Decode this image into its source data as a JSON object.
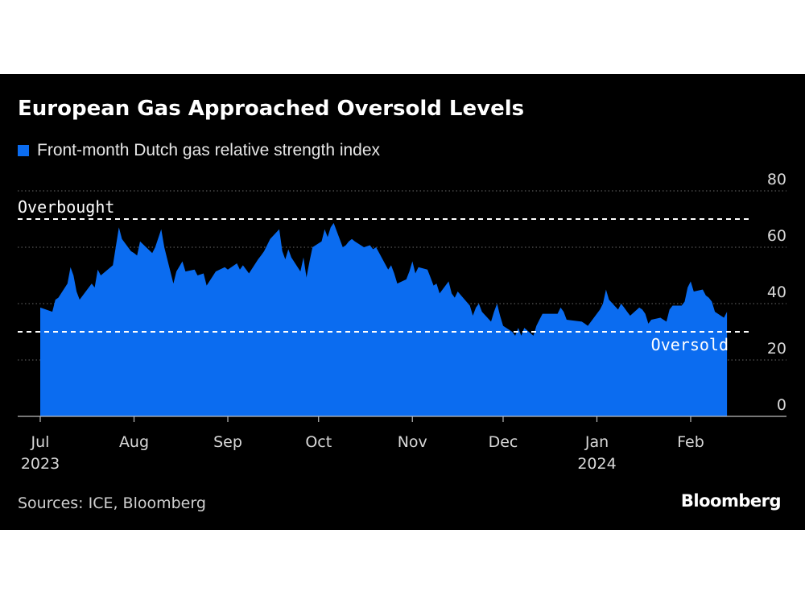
{
  "title": "European Gas Approached Oversold Levels",
  "source": "Sources: ICE, Bloomberg",
  "brand": "Bloomberg",
  "colors": {
    "background": "#000000",
    "area": "#0b6cf0",
    "text": "#ffffff"
  },
  "chart_data": {
    "type": "area",
    "title": "European Gas Approached Oversold Levels",
    "legend": [
      {
        "name": "Front-month Dutch gas relative strength index",
        "color": "#0b6cf0"
      }
    ],
    "legend_placement": "top-left",
    "ylim": [
      0,
      80
    ],
    "y_ticks": [
      0,
      20,
      40,
      60,
      80
    ],
    "y_axis_side": "right",
    "grid": "horizontal dotted",
    "x_ticks": [
      {
        "date": "2023-07-01",
        "label": "Jul",
        "year": "2023"
      },
      {
        "date": "2023-08-01",
        "label": "Aug",
        "year": ""
      },
      {
        "date": "2023-09-01",
        "label": "Sep",
        "year": ""
      },
      {
        "date": "2023-10-01",
        "label": "Oct",
        "year": ""
      },
      {
        "date": "2023-11-01",
        "label": "Nov",
        "year": ""
      },
      {
        "date": "2023-12-01",
        "label": "Dec",
        "year": ""
      },
      {
        "date": "2024-01-01",
        "label": "Jan",
        "year": "2024"
      },
      {
        "date": "2024-02-01",
        "label": "Feb",
        "year": ""
      }
    ],
    "reference_lines": [
      {
        "label": "Overbought",
        "value": 70
      },
      {
        "label": "Oversold",
        "value": 30
      }
    ],
    "series": [
      {
        "name": "Front-month Dutch gas relative strength index",
        "points": [
          [
            "2023-07-01",
            38.6
          ],
          [
            "2023-07-05",
            37.1
          ],
          [
            "2023-07-06",
            41.4
          ],
          [
            "2023-07-07",
            42.1
          ],
          [
            "2023-07-10",
            47.1
          ],
          [
            "2023-07-11",
            52.9
          ],
          [
            "2023-07-12",
            50.0
          ],
          [
            "2023-07-13",
            44.3
          ],
          [
            "2023-07-14",
            41.4
          ],
          [
            "2023-07-18",
            47.1
          ],
          [
            "2023-07-19",
            45.7
          ],
          [
            "2023-07-20",
            52.1
          ],
          [
            "2023-07-21",
            50.0
          ],
          [
            "2023-07-25",
            53.6
          ],
          [
            "2023-07-27",
            67.1
          ],
          [
            "2023-07-28",
            62.9
          ],
          [
            "2023-07-31",
            58.6
          ],
          [
            "2023-08-01",
            57.9
          ],
          [
            "2023-08-02",
            57.1
          ],
          [
            "2023-08-03",
            62.1
          ],
          [
            "2023-08-07",
            57.9
          ],
          [
            "2023-08-08",
            60.0
          ],
          [
            "2023-08-10",
            66.4
          ],
          [
            "2023-08-11",
            60.0
          ],
          [
            "2023-08-14",
            47.1
          ],
          [
            "2023-08-15",
            51.4
          ],
          [
            "2023-08-17",
            55.0
          ],
          [
            "2023-08-18",
            51.4
          ],
          [
            "2023-08-21",
            52.1
          ],
          [
            "2023-08-22",
            50.0
          ],
          [
            "2023-08-24",
            50.7
          ],
          [
            "2023-08-25",
            46.4
          ],
          [
            "2023-08-28",
            51.4
          ],
          [
            "2023-08-31",
            52.9
          ],
          [
            "2023-09-01",
            52.1
          ],
          [
            "2023-09-04",
            54.3
          ],
          [
            "2023-09-05",
            52.1
          ],
          [
            "2023-09-06",
            53.6
          ],
          [
            "2023-09-08",
            50.7
          ],
          [
            "2023-09-11",
            55.7
          ],
          [
            "2023-09-12",
            57.1
          ],
          [
            "2023-09-13",
            58.6
          ],
          [
            "2023-09-15",
            62.9
          ],
          [
            "2023-09-18",
            66.4
          ],
          [
            "2023-09-19",
            58.6
          ],
          [
            "2023-09-20",
            55.7
          ],
          [
            "2023-09-21",
            59.3
          ],
          [
            "2023-09-22",
            56.4
          ],
          [
            "2023-09-25",
            51.4
          ],
          [
            "2023-09-26",
            56.4
          ],
          [
            "2023-09-27",
            49.3
          ],
          [
            "2023-09-28",
            55.0
          ],
          [
            "2023-09-29",
            60.0
          ],
          [
            "2023-10-02",
            62.1
          ],
          [
            "2023-10-03",
            66.4
          ],
          [
            "2023-10-04",
            63.6
          ],
          [
            "2023-10-05",
            67.1
          ],
          [
            "2023-10-06",
            68.6
          ],
          [
            "2023-10-09",
            60.0
          ],
          [
            "2023-10-10",
            60.7
          ],
          [
            "2023-10-11",
            62.1
          ],
          [
            "2023-10-12",
            62.9
          ],
          [
            "2023-10-13",
            62.1
          ],
          [
            "2023-10-16",
            60.0
          ],
          [
            "2023-10-18",
            60.7
          ],
          [
            "2023-10-19",
            59.3
          ],
          [
            "2023-10-20",
            60.0
          ],
          [
            "2023-10-24",
            52.1
          ],
          [
            "2023-10-25",
            53.6
          ],
          [
            "2023-10-26",
            50.7
          ],
          [
            "2023-10-27",
            47.1
          ],
          [
            "2023-10-30",
            48.6
          ],
          [
            "2023-10-31",
            51.4
          ],
          [
            "2023-11-01",
            55.0
          ],
          [
            "2023-11-02",
            50.7
          ],
          [
            "2023-11-03",
            52.9
          ],
          [
            "2023-11-06",
            52.1
          ],
          [
            "2023-11-07",
            49.3
          ],
          [
            "2023-11-08",
            46.4
          ],
          [
            "2023-11-09",
            47.1
          ],
          [
            "2023-11-10",
            43.6
          ],
          [
            "2023-11-13",
            47.9
          ],
          [
            "2023-11-14",
            43.6
          ],
          [
            "2023-11-15",
            42.1
          ],
          [
            "2023-11-16",
            44.3
          ],
          [
            "2023-11-20",
            39.3
          ],
          [
            "2023-11-21",
            35.7
          ],
          [
            "2023-11-22",
            38.6
          ],
          [
            "2023-11-23",
            40.0
          ],
          [
            "2023-11-24",
            37.1
          ],
          [
            "2023-11-27",
            33.6
          ],
          [
            "2023-11-28",
            37.1
          ],
          [
            "2023-11-29",
            40.0
          ],
          [
            "2023-11-30",
            35.7
          ],
          [
            "2023-12-01",
            32.1
          ],
          [
            "2023-12-04",
            30.0
          ],
          [
            "2023-12-05",
            28.6
          ],
          [
            "2023-12-06",
            31.4
          ],
          [
            "2023-12-07",
            28.6
          ],
          [
            "2023-12-08",
            31.4
          ],
          [
            "2023-12-11",
            28.6
          ],
          [
            "2023-12-12",
            32.1
          ],
          [
            "2023-12-13",
            34.3
          ],
          [
            "2023-12-14",
            36.4
          ],
          [
            "2023-12-15",
            36.4
          ],
          [
            "2023-12-18",
            36.4
          ],
          [
            "2023-12-19",
            36.4
          ],
          [
            "2023-12-20",
            38.6
          ],
          [
            "2023-12-21",
            37.1
          ],
          [
            "2023-12-22",
            34.3
          ],
          [
            "2023-12-27",
            33.6
          ],
          [
            "2023-12-28",
            32.9
          ],
          [
            "2023-12-29",
            32.1
          ],
          [
            "2024-01-02",
            37.9
          ],
          [
            "2024-01-03",
            40.0
          ],
          [
            "2024-01-04",
            45.0
          ],
          [
            "2024-01-05",
            41.4
          ],
          [
            "2024-01-08",
            37.9
          ],
          [
            "2024-01-09",
            40.0
          ],
          [
            "2024-01-10",
            38.6
          ],
          [
            "2024-01-11",
            37.1
          ],
          [
            "2024-01-12",
            35.7
          ],
          [
            "2024-01-15",
            38.6
          ],
          [
            "2024-01-16",
            37.9
          ],
          [
            "2024-01-17",
            36.4
          ],
          [
            "2024-01-18",
            32.9
          ],
          [
            "2024-01-19",
            34.3
          ],
          [
            "2024-01-22",
            35.0
          ],
          [
            "2024-01-23",
            34.3
          ],
          [
            "2024-01-24",
            33.6
          ],
          [
            "2024-01-25",
            37.9
          ],
          [
            "2024-01-26",
            39.3
          ],
          [
            "2024-01-29",
            39.3
          ],
          [
            "2024-01-30",
            40.7
          ],
          [
            "2024-01-31",
            45.7
          ],
          [
            "2024-02-01",
            47.9
          ],
          [
            "2024-02-02",
            44.3
          ],
          [
            "2024-02-05",
            45.0
          ],
          [
            "2024-02-06",
            42.9
          ],
          [
            "2024-02-07",
            42.1
          ],
          [
            "2024-02-08",
            40.7
          ],
          [
            "2024-02-09",
            37.1
          ],
          [
            "2024-02-12",
            35.0
          ],
          [
            "2024-02-13",
            37.1
          ]
        ]
      }
    ]
  }
}
